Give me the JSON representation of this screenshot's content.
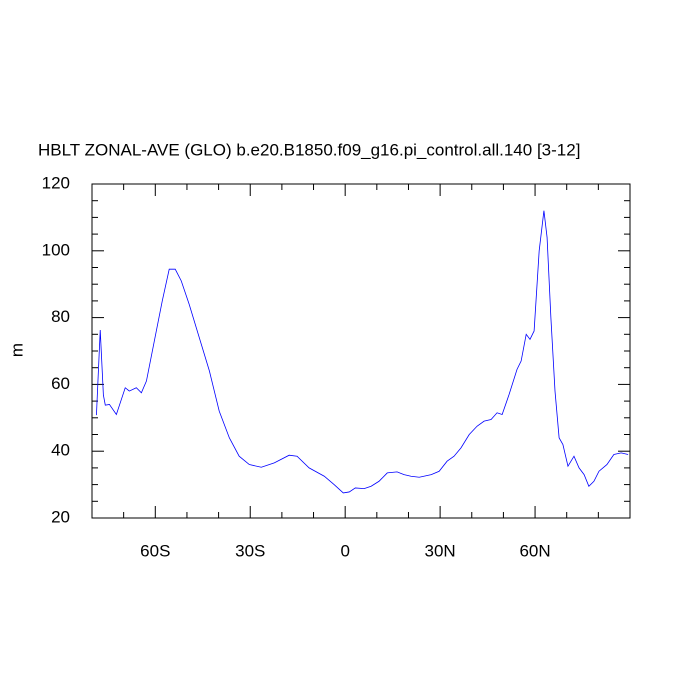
{
  "chart_data": {
    "type": "line",
    "title": "HBLT ZONAL-AVE (GLO) b.e20.B1850.f09_g16.pi_control.all.140 [3-12]",
    "ylabel": "m",
    "color": "#0000ff",
    "xlim": [
      -80,
      90
    ],
    "ylim": [
      20,
      120
    ],
    "xticks": [
      {
        "value": -60,
        "label": "60S"
      },
      {
        "value": -30,
        "label": "30S"
      },
      0,
      {
        "value": 30,
        "label": "30N"
      },
      {
        "value": 60,
        "label": "60N"
      }
    ],
    "yticks": [
      20,
      40,
      60,
      80,
      100,
      120
    ],
    "xminor": [
      -80,
      -70,
      -50,
      -40,
      -20,
      -10,
      10,
      20,
      40,
      50,
      70,
      80,
      90
    ],
    "yminor": [
      25,
      30,
      35,
      45,
      50,
      55,
      65,
      70,
      75,
      85,
      90,
      95,
      105,
      110,
      115
    ],
    "x": [
      -78.6,
      -77.4,
      -76.4,
      -75.8,
      -74.5,
      -72.3,
      -69.5,
      -68.2,
      -66.0,
      -64.4,
      -62.8,
      -60.3,
      -57.8,
      -55.6,
      -53.7,
      -51.8,
      -49.3,
      -46.1,
      -42.9,
      -39.8,
      -36.6,
      -33.5,
      -30.3,
      -26.5,
      -22.4,
      -17.7,
      -15.2,
      -11.4,
      -6.6,
      -3.5,
      -0.6,
      1.3,
      3.2,
      6.0,
      8.2,
      10.7,
      13.3,
      16.4,
      18.6,
      20.8,
      23.4,
      27.2,
      29.7,
      32.2,
      34.4,
      36.6,
      39.2,
      41.7,
      43.9,
      46.1,
      48.0,
      49.6,
      51.8,
      54.3,
      55.6,
      57.2,
      58.4,
      59.7,
      61.3,
      62.8,
      63.8,
      65.0,
      66.3,
      67.6,
      68.8,
      70.4,
      72.3,
      73.9,
      75.5,
      77.0,
      78.6,
      80.2,
      82.7,
      84.9,
      87.2,
      89.4
    ],
    "values": [
      50.8,
      76.3,
      56.8,
      53.8,
      54,
      51,
      59,
      58,
      59,
      57.5,
      61,
      73,
      85,
      94.5,
      94.5,
      91,
      84,
      74,
      64,
      52,
      44,
      38.5,
      36,
      35.2,
      36.5,
      38.8,
      38.5,
      35,
      32.5,
      30,
      27.5,
      27.8,
      29,
      28.8,
      29.5,
      31,
      33.5,
      33.8,
      33,
      32.5,
      32.2,
      33,
      34,
      37,
      38.5,
      41,
      45,
      47.5,
      49,
      49.5,
      51.5,
      51,
      57,
      64.5,
      67,
      75,
      73.5,
      76,
      100,
      112,
      104,
      80,
      58,
      44,
      42,
      35.5,
      38.5,
      35,
      33,
      29.5,
      31,
      34,
      36,
      39,
      39.5,
      39
    ]
  }
}
